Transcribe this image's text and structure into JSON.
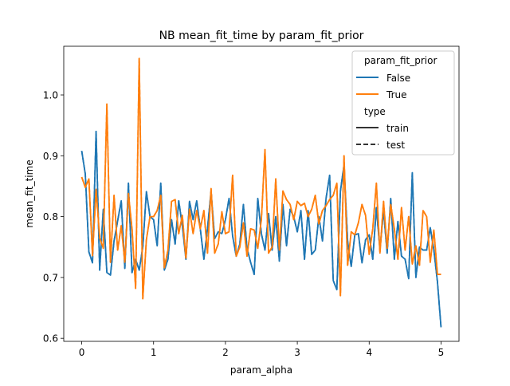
{
  "chart_data": {
    "type": "line",
    "title": "NB mean_fit_time by param_fit_prior",
    "xlabel": "param_alpha",
    "ylabel": "mean_fit_time",
    "xlim": [
      -0.25,
      5.25
    ],
    "ylim": [
      0.595,
      1.08
    ],
    "xticks": [
      0,
      1,
      2,
      3,
      4,
      5
    ],
    "xtick_labels": [
      "0",
      "1",
      "2",
      "3",
      "4",
      "5"
    ],
    "yticks": [
      0.6,
      0.7,
      0.8,
      0.9,
      1.0
    ],
    "ytick_labels": [
      "0.6",
      "0.7",
      "0.8",
      "0.9",
      "1.0"
    ],
    "grid": false,
    "legend": {
      "placement": "top-right",
      "hue_title": "param_fit_prior",
      "hue_entries": [
        {
          "label": "False",
          "color": "#1f77b4"
        },
        {
          "label": "True",
          "color": "#ff7f0e"
        }
      ],
      "style_title": "type",
      "style_entries": [
        {
          "label": "train",
          "dash": "solid"
        },
        {
          "label": "test",
          "dash": "dashed"
        }
      ]
    },
    "series": [
      {
        "name": "False",
        "color": "#1f77b4",
        "x": [
          0.0,
          0.05,
          0.1,
          0.15,
          0.2,
          0.25,
          0.3,
          0.35,
          0.4,
          0.45,
          0.5,
          0.55,
          0.6,
          0.65,
          0.7,
          0.75,
          0.8,
          0.85,
          0.9,
          0.95,
          1.0,
          1.05,
          1.1,
          1.15,
          1.2,
          1.25,
          1.3,
          1.35,
          1.4,
          1.45,
          1.5,
          1.55,
          1.6,
          1.65,
          1.7,
          1.75,
          1.8,
          1.85,
          1.9,
          1.95,
          2.0,
          2.05,
          2.1,
          2.15,
          2.2,
          2.25,
          2.3,
          2.35,
          2.4,
          2.45,
          2.5,
          2.55,
          2.6,
          2.65,
          2.7,
          2.75,
          2.8,
          2.85,
          2.9,
          2.95,
          3.0,
          3.05,
          3.1,
          3.15,
          3.2,
          3.25,
          3.3,
          3.35,
          3.4,
          3.45,
          3.5,
          3.55,
          3.6,
          3.65,
          3.7,
          3.75,
          3.8,
          3.85,
          3.9,
          3.95,
          4.0,
          4.05,
          4.1,
          4.15,
          4.2,
          4.25,
          4.3,
          4.35,
          4.4,
          4.45,
          4.5,
          4.55,
          4.6,
          4.65,
          4.7,
          4.75,
          4.8,
          4.85,
          4.9,
          4.95,
          5.0
        ],
        "y": [
          0.908,
          0.87,
          0.742,
          0.724,
          0.94,
          0.712,
          0.812,
          0.708,
          0.704,
          0.76,
          0.793,
          0.826,
          0.715,
          0.855,
          0.708,
          0.73,
          0.712,
          0.75,
          0.841,
          0.8,
          0.795,
          0.752,
          0.855,
          0.712,
          0.73,
          0.795,
          0.755,
          0.826,
          0.785,
          0.73,
          0.825,
          0.795,
          0.826,
          0.78,
          0.73,
          0.78,
          0.842,
          0.764,
          0.775,
          0.772,
          0.795,
          0.83,
          0.768,
          0.735,
          0.755,
          0.82,
          0.748,
          0.725,
          0.705,
          0.83,
          0.772,
          0.745,
          0.805,
          0.745,
          0.8,
          0.727,
          0.82,
          0.752,
          0.812,
          0.8,
          0.775,
          0.81,
          0.73,
          0.81,
          0.738,
          0.745,
          0.8,
          0.76,
          0.83,
          0.868,
          0.695,
          0.68,
          0.842,
          0.885,
          0.76,
          0.718,
          0.77,
          0.772,
          0.724,
          0.762,
          0.77,
          0.73,
          0.815,
          0.745,
          0.81,
          0.74,
          0.83,
          0.73,
          0.792,
          0.735,
          0.73,
          0.698,
          0.872,
          0.7,
          0.75,
          0.745,
          0.745,
          0.782,
          0.745,
          0.693,
          0.618
        ]
      },
      {
        "name": "True",
        "color": "#ff7f0e",
        "x": [
          0.0,
          0.05,
          0.1,
          0.15,
          0.2,
          0.25,
          0.3,
          0.35,
          0.4,
          0.45,
          0.5,
          0.55,
          0.6,
          0.65,
          0.7,
          0.75,
          0.8,
          0.85,
          0.9,
          0.95,
          1.0,
          1.05,
          1.1,
          1.15,
          1.2,
          1.25,
          1.3,
          1.35,
          1.4,
          1.45,
          1.5,
          1.55,
          1.6,
          1.65,
          1.7,
          1.75,
          1.8,
          1.85,
          1.9,
          1.95,
          2.0,
          2.05,
          2.1,
          2.15,
          2.2,
          2.25,
          2.3,
          2.35,
          2.4,
          2.45,
          2.5,
          2.55,
          2.6,
          2.65,
          2.7,
          2.75,
          2.8,
          2.85,
          2.9,
          2.95,
          3.0,
          3.05,
          3.1,
          3.15,
          3.2,
          3.25,
          3.3,
          3.35,
          3.4,
          3.45,
          3.5,
          3.55,
          3.6,
          3.65,
          3.7,
          3.75,
          3.8,
          3.85,
          3.9,
          3.95,
          4.0,
          4.05,
          4.1,
          4.15,
          4.2,
          4.25,
          4.3,
          4.35,
          4.4,
          4.45,
          4.5,
          4.55,
          4.6,
          4.65,
          4.7,
          4.75,
          4.8,
          4.85,
          4.9,
          4.95,
          5.0
        ],
        "y": [
          0.865,
          0.848,
          0.862,
          0.736,
          0.845,
          0.765,
          0.748,
          0.985,
          0.725,
          0.835,
          0.745,
          0.785,
          0.725,
          0.838,
          0.78,
          0.682,
          1.06,
          0.665,
          0.762,
          0.8,
          0.8,
          0.81,
          0.835,
          0.716,
          0.745,
          0.825,
          0.828,
          0.772,
          0.802,
          0.732,
          0.812,
          0.772,
          0.81,
          0.78,
          0.81,
          0.74,
          0.846,
          0.74,
          0.755,
          0.808,
          0.772,
          0.775,
          0.868,
          0.735,
          0.75,
          0.79,
          0.735,
          0.78,
          0.778,
          0.748,
          0.795,
          0.91,
          0.74,
          0.75,
          0.862,
          0.745,
          0.842,
          0.828,
          0.82,
          0.795,
          0.825,
          0.818,
          0.822,
          0.8,
          0.812,
          0.835,
          0.788,
          0.81,
          0.818,
          0.828,
          0.835,
          0.855,
          0.67,
          0.9,
          0.72,
          0.775,
          0.77,
          0.79,
          0.82,
          0.802,
          0.738,
          0.78,
          0.855,
          0.74,
          0.825,
          0.748,
          0.82,
          0.78,
          0.73,
          0.815,
          0.745,
          0.8,
          0.722,
          0.752,
          0.72,
          0.81,
          0.8,
          0.725,
          0.778,
          0.705,
          0.705
        ]
      }
    ]
  }
}
